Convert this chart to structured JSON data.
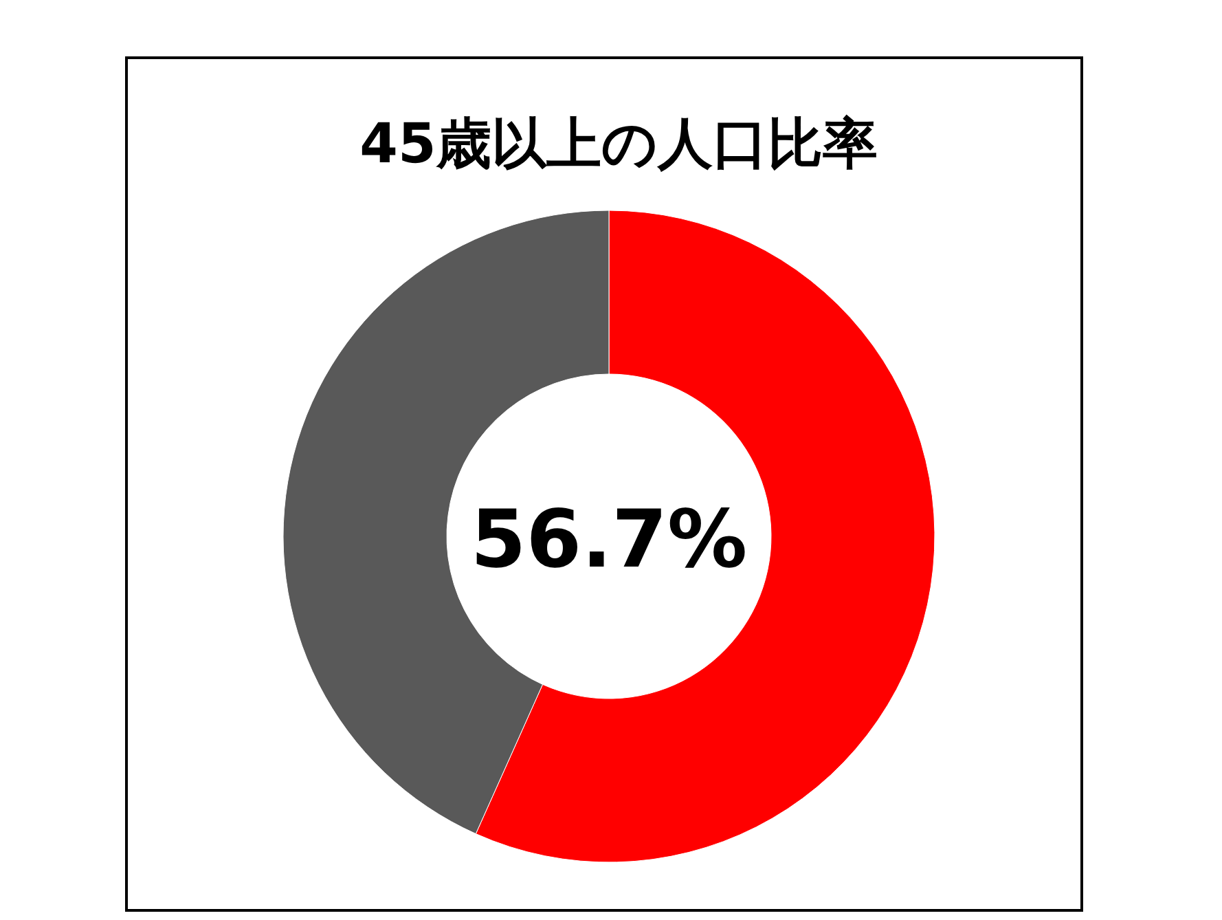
{
  "chart_data": {
    "type": "donut",
    "title": "45歳以上の人口比率",
    "categories": [
      null,
      null
    ],
    "values": [
      56.7,
      43.3
    ],
    "colors": [
      "#ff0000",
      "#595959"
    ],
    "annotations": [
      "56.7%"
    ]
  }
}
